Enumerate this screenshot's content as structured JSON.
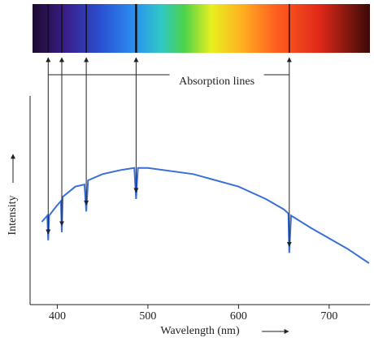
{
  "chart_data": {
    "type": "line",
    "annotation": "Absorption lines",
    "xlabel": "Wavelength (nm)",
    "ylabel": "Intensity",
    "x": [
      383,
      389,
      390,
      391,
      400,
      404,
      405,
      406,
      420,
      430,
      432,
      434,
      450,
      470,
      485,
      487,
      489,
      500,
      550,
      600,
      630,
      650,
      655,
      656,
      658,
      680,
      700,
      720,
      744
    ],
    "values": [
      40,
      43,
      31,
      43,
      48,
      50,
      35,
      52,
      57,
      58,
      45,
      60,
      63,
      65,
      66,
      51,
      66,
      66,
      63,
      57,
      51,
      46,
      44,
      25,
      43,
      37,
      32,
      27,
      20
    ],
    "color": "#3a6fd8",
    "absorption_lines": [
      390,
      405,
      432,
      487,
      656
    ],
    "xlim": [
      370,
      745
    ],
    "xticks": [
      400,
      500,
      600,
      700
    ],
    "ylim": [
      0,
      100
    ]
  }
}
